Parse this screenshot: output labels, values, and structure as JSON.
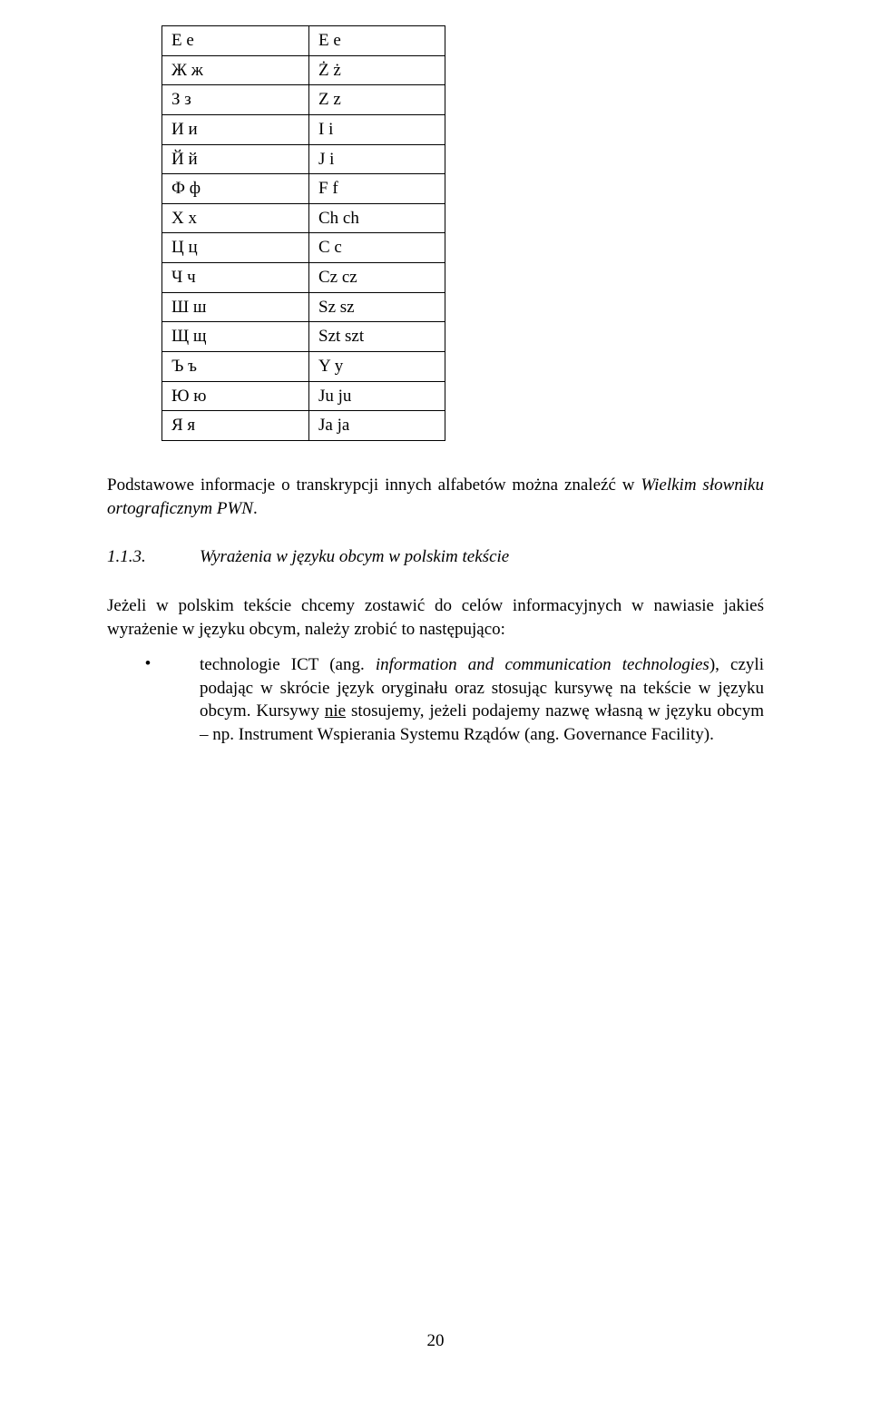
{
  "table": {
    "rows": [
      {
        "col1": "Е е",
        "col2": "E e"
      },
      {
        "col1": "Ж ж",
        "col2": "Ż ż"
      },
      {
        "col1": "З з",
        "col2": "Z z"
      },
      {
        "col1": "И и",
        "col2": "I i"
      },
      {
        "col1": "Й й",
        "col2": "J i"
      },
      {
        "col1": "Ф ф",
        "col2": "F f"
      },
      {
        "col1": "Х х",
        "col2": "Ch ch"
      },
      {
        "col1": "Ц ц",
        "col2": "C c"
      },
      {
        "col1": "Ч ч",
        "col2": "Cz cz"
      },
      {
        "col1": "Ш ш",
        "col2": "Sz sz"
      },
      {
        "col1": "Щ щ",
        "col2": "Szt szt"
      },
      {
        "col1": "Ъ ъ",
        "col2": "Y y"
      },
      {
        "col1": "Ю ю",
        "col2": "Ju ju"
      },
      {
        "col1": "Я я",
        "col2": "Ja ja"
      }
    ]
  },
  "intro": {
    "text_pre": "Podstawowe informacje o transkrypcji innych alfabetów można znaleźć w ",
    "text_italic": "Wielkim słowniku ortograficznym PWN",
    "text_post": "."
  },
  "section": {
    "number": "1.1.3.",
    "title": "Wyrażenia w języku obcym w polskim tekście"
  },
  "body": {
    "para": "Jeżeli w polskim tekście chcemy zostawić do celów informacyjnych w nawiasie jakieś wyrażenie w języku obcym, należy zrobić to następująco:"
  },
  "bullet": {
    "text_pre": "technologie ICT (ang. ",
    "text_italic": "information and communication technologies",
    "text_mid1": "), czyli podając w skrócie język oryginału oraz stosując kursywę na tekście w języku obcym. Kursywy ",
    "underline": "nie",
    "text_post": " stosujemy, jeżeli podajemy nazwę własną w języku obcym – np. Instrument Wspierania Systemu Rządów (ang. Governance Facility)."
  },
  "page": {
    "number": "20"
  }
}
